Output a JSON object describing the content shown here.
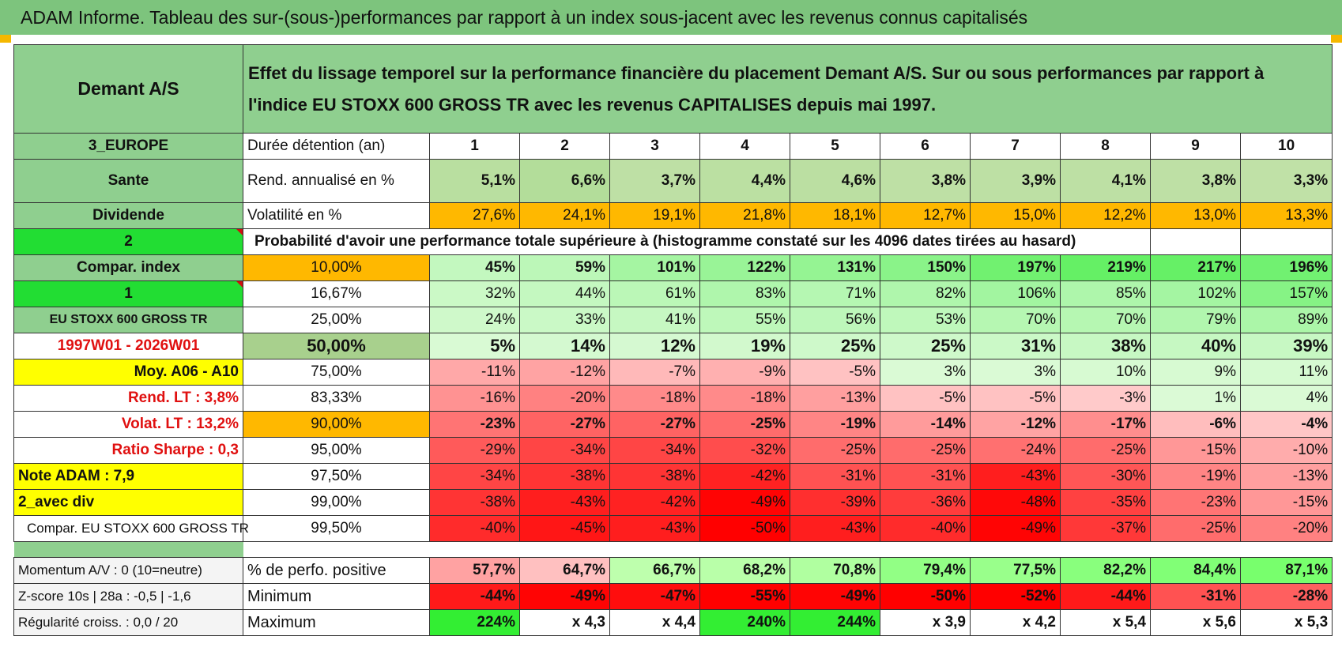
{
  "title": "ADAM Informe. Tableau des sur-(sous-)performances par rapport à un index sous-jacent avec les revenus connus capitalisés",
  "header": {
    "name": "Demant A/S",
    "description": "Effet du lissage temporel sur la performance financière du placement Demant A/S. Sur ou sous performances par rapport à l'indice EU STOXX 600 GROSS TR avec les revenus CAPITALISES depuis mai 1997."
  },
  "years": [
    "1",
    "2",
    "3",
    "4",
    "5",
    "6",
    "7",
    "8",
    "9",
    "10"
  ],
  "rows": {
    "duree": {
      "left": "3_EUROPE",
      "label": "Durée détention (an)"
    },
    "rend": {
      "left": "Sante",
      "label": "Rend. annualisé en %",
      "values": [
        "5,1%",
        "6,6%",
        "3,7%",
        "4,4%",
        "4,6%",
        "3,8%",
        "3,9%",
        "4,1%",
        "3,8%",
        "3,3%"
      ]
    },
    "vol": {
      "left": "Dividende",
      "label": "Volatilité en %",
      "values": [
        "27,6%",
        "24,1%",
        "19,1%",
        "21,8%",
        "18,1%",
        "12,7%",
        "15,0%",
        "12,2%",
        "13,0%",
        "13,3%"
      ]
    },
    "prob": {
      "left": "2",
      "label": "Probabilité d'avoir une performance totale supérieure à (histogramme constaté sur les 4096 dates tirées au hasard)"
    }
  },
  "table": [
    {
      "left": "Compar. index",
      "pct": "10,00%",
      "values": [
        "45%",
        "59%",
        "101%",
        "122%",
        "131%",
        "150%",
        "197%",
        "219%",
        "217%",
        "196%"
      ]
    },
    {
      "left": "1",
      "pct": "16,67%",
      "values": [
        "32%",
        "44%",
        "61%",
        "83%",
        "71%",
        "82%",
        "106%",
        "85%",
        "102%",
        "157%"
      ]
    },
    {
      "left": "EU STOXX 600 GROSS TR",
      "pct": "25,00%",
      "values": [
        "24%",
        "33%",
        "41%",
        "55%",
        "56%",
        "53%",
        "70%",
        "70%",
        "79%",
        "89%"
      ]
    },
    {
      "left": "1997W01 - 2026W01",
      "pct": "50,00%",
      "values": [
        "5%",
        "14%",
        "12%",
        "19%",
        "25%",
        "25%",
        "31%",
        "38%",
        "40%",
        "39%"
      ]
    },
    {
      "left": "Moy. A06 - A10",
      "pct": "75,00%",
      "values": [
        "-11%",
        "-12%",
        "-7%",
        "-9%",
        "-5%",
        "3%",
        "3%",
        "10%",
        "9%",
        "11%"
      ]
    },
    {
      "left": "Rend. LT :    3,8%",
      "pct": "83,33%",
      "values": [
        "-16%",
        "-20%",
        "-18%",
        "-18%",
        "-13%",
        "-5%",
        "-5%",
        "-3%",
        "1%",
        "4%"
      ]
    },
    {
      "left": "Volat. LT :    13,2%",
      "pct": "90,00%",
      "values": [
        "-23%",
        "-27%",
        "-27%",
        "-25%",
        "-19%",
        "-14%",
        "-12%",
        "-17%",
        "-6%",
        "-4%"
      ]
    },
    {
      "left": "Ratio Sharpe :     0,3",
      "pct": "95,00%",
      "values": [
        "-29%",
        "-34%",
        "-34%",
        "-32%",
        "-25%",
        "-25%",
        "-24%",
        "-25%",
        "-15%",
        "-10%"
      ]
    },
    {
      "left": "Note ADAM : 7,9",
      "pct": "97,50%",
      "values": [
        "-34%",
        "-38%",
        "-38%",
        "-42%",
        "-31%",
        "-31%",
        "-43%",
        "-30%",
        "-19%",
        "-13%"
      ]
    },
    {
      "left": "2_avec div",
      "pct": "99,00%",
      "values": [
        "-38%",
        "-43%",
        "-42%",
        "-49%",
        "-39%",
        "-36%",
        "-48%",
        "-35%",
        "-23%",
        "-15%"
      ]
    },
    {
      "left": "Compar. EU STOXX 600 GROSS TR",
      "pct": "99,50%",
      "values": [
        "-40%",
        "-45%",
        "-43%",
        "-50%",
        "-43%",
        "-40%",
        "-49%",
        "-37%",
        "-25%",
        "-20%"
      ]
    }
  ],
  "stats": [
    {
      "left": "Momentum A/V : 0 (10=neutre)",
      "label": "% de perfo. positive",
      "values": [
        "57,7%",
        "64,7%",
        "66,7%",
        "68,2%",
        "70,8%",
        "79,4%",
        "77,5%",
        "82,2%",
        "84,4%",
        "87,1%"
      ]
    },
    {
      "left": "Z-score 10s | 28a : -0,5 | -1,6",
      "label": "Minimum",
      "values": [
        "-44%",
        "-49%",
        "-47%",
        "-55%",
        "-49%",
        "-50%",
        "-52%",
        "-44%",
        "-31%",
        "-28%"
      ]
    },
    {
      "left": "Régularité croiss. : 0,0 / 20",
      "label": "Maximum",
      "values": [
        "224%",
        "x 4,3",
        "x 4,4",
        "240%",
        "244%",
        "x 3,9",
        "x 4,2",
        "x 5,4",
        "x 5,6",
        "x 5,3"
      ]
    }
  ],
  "colors": {
    "title_bg": "#7dc47d",
    "label_bg": "#8fcf8f",
    "bright_green": "#22dd33",
    "yellow": "#ffff00",
    "orange": "#ffb800",
    "red_text": "#e01010"
  }
}
